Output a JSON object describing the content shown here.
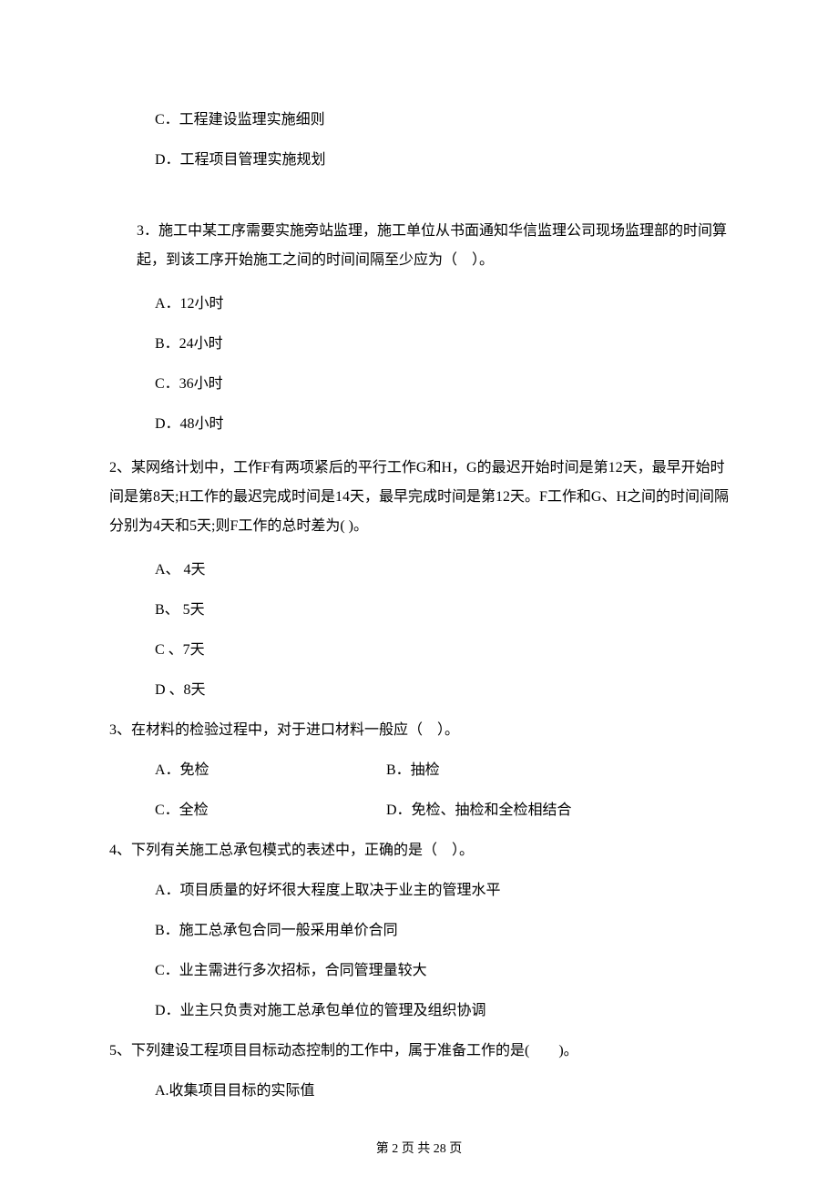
{
  "top_options": {
    "c": "C．工程建设监理实施细则",
    "d": "D．工程项目管理实施规划"
  },
  "q3_sub": {
    "text": "3．施工中某工序需要实施旁站监理，施工单位从书面通知华信监理公司现场监理部的时间算起，到该工序开始施工之间的时间间隔至少应为（　）。",
    "a": "A．12小时",
    "b": "B．24小时",
    "c": "C．36小时",
    "d": "D．48小时"
  },
  "q2": {
    "text": "2、某网络计划中，工作F有两项紧后的平行工作G和H，G的最迟开始时间是第12天，最早开始时间是第8天;H工作的最迟完成时间是14天，最早完成时间是第12天。F工作和G、H之间的时间间隔分别为4天和5天;则F工作的总时差为( )。",
    "a": "A、 4天",
    "b": "B、 5天",
    "c": "C 、7天",
    "d": "D 、8天"
  },
  "q3": {
    "text": "3、在材料的检验过程中，对于进口材料一般应（　）。",
    "a": "A．免检",
    "b": "B．抽检",
    "c": "C．全检",
    "d": "D．免检、抽检和全检相结合"
  },
  "q4": {
    "text": "4、下列有关施工总承包模式的表述中，正确的是（　）。",
    "a": "A．项目质量的好坏很大程度上取决于业主的管理水平",
    "b": "B．施工总承包合同一般采用单价合同",
    "c": "C．业主需进行多次招标，合同管理量较大",
    "d": "D．业主只负责对施工总承包单位的管理及组织协调"
  },
  "q5": {
    "text": "5、下列建设工程项目目标动态控制的工作中，属于准备工作的是(　　)。",
    "a": "A.收集项目目标的实际值"
  },
  "footer": "第 2 页 共 28 页"
}
